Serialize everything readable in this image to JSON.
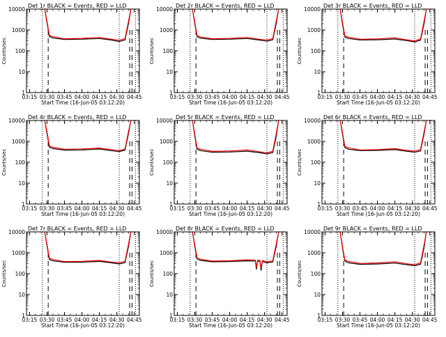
{
  "y_axis_label": "Counts/sec",
  "x_axis_label": "Start Time (16-Jun-05 03:12:20)",
  "x_tick_labels": [
    "03:15",
    "03:30",
    "03:45",
    "04:00",
    "04:15",
    "04:30",
    "04:45"
  ],
  "y_tick_labels": [
    "1",
    "10",
    "100",
    "1000",
    "10000"
  ],
  "colors": {
    "events": "#000000",
    "lld": "#ff0000",
    "background": "#ffffff"
  },
  "chart_data": [
    {
      "type": "line",
      "title": "Det 1r BLACK = Events, RED = LLD",
      "xlabel": "Start Time (16-Jun-05 03:12:20)",
      "ylabel": "Counts/sec",
      "x_unit": "time (HH:MM)",
      "xlim": [
        "03:12:20",
        "04:49:20"
      ],
      "ylim": [
        1,
        10000
      ],
      "yscale": "log",
      "dotted_markers": [
        "03:26",
        "04:32",
        "04:46"
      ],
      "dashed_markers": [
        "03:31",
        "04:41",
        "04:43"
      ],
      "series": [
        {
          "name": "Events",
          "x": [
            "03:28",
            "03:30",
            "03:32",
            "03:35",
            "03:45",
            "04:00",
            "04:15",
            "04:25",
            "04:32",
            "04:37",
            "04:40",
            "04:42"
          ],
          "values": [
            10000,
            2200,
            480,
            410,
            350,
            360,
            390,
            330,
            280,
            330,
            2000,
            10000
          ]
        },
        {
          "name": "LLD",
          "x": [
            "03:28",
            "03:30",
            "03:32",
            "03:35",
            "03:45",
            "04:00",
            "04:15",
            "04:25",
            "04:32",
            "04:37",
            "04:40",
            "04:42"
          ],
          "values": [
            10000,
            2600,
            560,
            470,
            380,
            395,
            440,
            360,
            320,
            380,
            2600,
            10000
          ]
        }
      ]
    },
    {
      "type": "line",
      "title": "Det 2r BLACK = Events, RED = LLD",
      "xlabel": "Start Time (16-Jun-05 03:12:20)",
      "ylabel": "Counts/sec",
      "x_unit": "time (HH:MM)",
      "xlim": [
        "03:12:20",
        "04:49:20"
      ],
      "ylim": [
        1,
        10000
      ],
      "yscale": "log",
      "dotted_markers": [
        "03:26",
        "04:32",
        "04:46"
      ],
      "dashed_markers": [
        "03:31",
        "04:41",
        "04:43"
      ],
      "series": [
        {
          "name": "Events",
          "x": [
            "03:28",
            "03:30",
            "03:32",
            "03:35",
            "03:45",
            "04:00",
            "04:15",
            "04:25",
            "04:32",
            "04:37",
            "04:40",
            "04:42"
          ],
          "values": [
            10000,
            2000,
            470,
            400,
            350,
            360,
            390,
            330,
            290,
            340,
            2000,
            10000
          ]
        },
        {
          "name": "LLD",
          "x": [
            "03:28",
            "03:30",
            "03:32",
            "03:35",
            "03:45",
            "04:00",
            "04:15",
            "04:25",
            "04:32",
            "04:37",
            "04:40",
            "04:42"
          ],
          "values": [
            10000,
            2400,
            540,
            460,
            380,
            395,
            440,
            360,
            330,
            390,
            2600,
            10000
          ]
        }
      ]
    },
    {
      "type": "line",
      "title": "Det 3r BLACK = Events, RED = LLD",
      "xlabel": "Start Time (16-Jun-05 03:12:20)",
      "ylabel": "Counts/sec",
      "x_unit": "time (HH:MM)",
      "xlim": [
        "03:12:20",
        "04:49:20"
      ],
      "ylim": [
        1,
        10000
      ],
      "yscale": "log",
      "dotted_markers": [
        "03:26",
        "04:32",
        "04:46"
      ],
      "dashed_markers": [
        "03:31",
        "04:41",
        "04:43"
      ],
      "series": [
        {
          "name": "Events",
          "x": [
            "03:28",
            "03:30",
            "03:32",
            "03:35",
            "03:45",
            "04:00",
            "04:15",
            "04:25",
            "04:32",
            "04:37",
            "04:40",
            "04:42"
          ],
          "values": [
            10000,
            1900,
            460,
            390,
            330,
            340,
            370,
            310,
            270,
            320,
            1900,
            10000
          ]
        },
        {
          "name": "LLD",
          "x": [
            "03:28",
            "03:30",
            "03:32",
            "03:35",
            "03:45",
            "04:00",
            "04:15",
            "04:25",
            "04:32",
            "04:37",
            "04:40",
            "04:42"
          ],
          "values": [
            10000,
            2300,
            530,
            450,
            360,
            375,
            420,
            340,
            300,
            370,
            2500,
            10000
          ]
        }
      ]
    },
    {
      "type": "line",
      "title": "Det 4r BLACK = Events, RED = LLD",
      "xlabel": "Start Time (16-Jun-05 03:12:20)",
      "ylabel": "Counts/sec",
      "x_unit": "time (HH:MM)",
      "xlim": [
        "03:12:20",
        "04:49:20"
      ],
      "ylim": [
        1,
        10000
      ],
      "yscale": "log",
      "dotted_markers": [
        "03:26",
        "04:32",
        "04:46"
      ],
      "dashed_markers": [
        "03:31",
        "04:41",
        "04:43"
      ],
      "series": [
        {
          "name": "Events",
          "x": [
            "03:28",
            "03:30",
            "03:32",
            "03:35",
            "03:45",
            "04:00",
            "04:15",
            "04:25",
            "04:32",
            "04:37",
            "04:40",
            "04:42"
          ],
          "values": [
            10000,
            2400,
            530,
            450,
            380,
            390,
            430,
            360,
            320,
            380,
            2400,
            10000
          ]
        },
        {
          "name": "LLD",
          "x": [
            "03:28",
            "03:30",
            "03:32",
            "03:35",
            "03:45",
            "04:00",
            "04:15",
            "04:25",
            "04:32",
            "04:37",
            "04:40",
            "04:42"
          ],
          "values": [
            10000,
            2900,
            610,
            520,
            420,
            430,
            480,
            400,
            360,
            430,
            3000,
            10000
          ]
        }
      ]
    },
    {
      "type": "line",
      "title": "Det 5r BLACK = Events, RED = LLD",
      "xlabel": "Start Time (16-Jun-05 03:12:20)",
      "ylabel": "Counts/sec",
      "x_unit": "time (HH:MM)",
      "xlim": [
        "03:12:20",
        "04:49:20"
      ],
      "ylim": [
        1,
        10000
      ],
      "yscale": "log",
      "dotted_markers": [
        "03:26",
        "04:32",
        "04:46"
      ],
      "dashed_markers": [
        "03:31",
        "04:41",
        "04:43"
      ],
      "series": [
        {
          "name": "Events",
          "x": [
            "03:28",
            "03:30",
            "03:32",
            "03:35",
            "03:45",
            "04:00",
            "04:15",
            "04:25",
            "04:32",
            "04:37",
            "04:40",
            "04:42"
          ],
          "values": [
            10000,
            1800,
            420,
            360,
            300,
            310,
            340,
            290,
            250,
            290,
            1700,
            10000
          ]
        },
        {
          "name": "LLD",
          "x": [
            "03:28",
            "03:30",
            "03:32",
            "03:35",
            "03:45",
            "04:00",
            "04:15",
            "04:25",
            "04:32",
            "04:37",
            "04:40",
            "04:42"
          ],
          "values": [
            10000,
            2200,
            490,
            420,
            330,
            345,
            390,
            320,
            280,
            340,
            2300,
            10000
          ]
        }
      ]
    },
    {
      "type": "line",
      "title": "Det 6r BLACK = Events, RED = LLD",
      "xlabel": "Start Time (16-Jun-05 03:12:20)",
      "ylabel": "Counts/sec",
      "x_unit": "time (HH:MM)",
      "xlim": [
        "03:12:20",
        "04:49:20"
      ],
      "ylim": [
        1,
        10000
      ],
      "yscale": "log",
      "dotted_markers": [
        "03:26",
        "04:32",
        "04:46"
      ],
      "dashed_markers": [
        "03:31",
        "04:41",
        "04:43"
      ],
      "series": [
        {
          "name": "Events",
          "x": [
            "03:28",
            "03:30",
            "03:32",
            "03:35",
            "03:45",
            "04:00",
            "04:15",
            "04:25",
            "04:32",
            "04:37",
            "04:40",
            "04:42"
          ],
          "values": [
            10000,
            2200,
            500,
            420,
            360,
            370,
            400,
            340,
            300,
            350,
            2100,
            10000
          ]
        },
        {
          "name": "LLD",
          "x": [
            "03:28",
            "03:30",
            "03:32",
            "03:35",
            "03:45",
            "04:00",
            "04:15",
            "04:25",
            "04:32",
            "04:37",
            "04:40",
            "04:42"
          ],
          "values": [
            10000,
            2700,
            580,
            490,
            390,
            405,
            450,
            370,
            340,
            400,
            2700,
            10000
          ]
        }
      ]
    },
    {
      "type": "line",
      "title": "Det 7r BLACK = Events, RED = LLD",
      "xlabel": "Start Time (16-Jun-05 03:12:20)",
      "ylabel": "Counts/sec",
      "x_unit": "time (HH:MM)",
      "xlim": [
        "03:12:20",
        "04:49:20"
      ],
      "ylim": [
        1,
        10000
      ],
      "yscale": "log",
      "dotted_markers": [
        "03:26",
        "04:32",
        "04:46"
      ],
      "dashed_markers": [
        "03:31",
        "04:41",
        "04:43"
      ],
      "series": [
        {
          "name": "Events",
          "x": [
            "03:28",
            "03:30",
            "03:32",
            "03:35",
            "03:45",
            "04:00",
            "04:15",
            "04:25",
            "04:32",
            "04:37",
            "04:40",
            "04:42"
          ],
          "values": [
            10000,
            2100,
            480,
            410,
            350,
            355,
            385,
            330,
            290,
            340,
            2000,
            10000
          ]
        },
        {
          "name": "LLD",
          "x": [
            "03:28",
            "03:30",
            "03:32",
            "03:35",
            "03:45",
            "04:00",
            "04:15",
            "04:25",
            "04:32",
            "04:37",
            "04:40",
            "04:42"
          ],
          "values": [
            10000,
            2500,
            550,
            470,
            380,
            390,
            430,
            360,
            330,
            390,
            2600,
            10000
          ]
        }
      ]
    },
    {
      "type": "line",
      "title": "Det 8r BLACK = Events, RED = LLD",
      "xlabel": "Start Time (16-Jun-05 03:12:20)",
      "ylabel": "Counts/sec",
      "x_unit": "time (HH:MM)",
      "xlim": [
        "03:12:20",
        "04:49:20"
      ],
      "ylim": [
        1,
        10000
      ],
      "yscale": "log",
      "dotted_markers": [
        "03:26",
        "04:32",
        "04:46"
      ],
      "dashed_markers": [
        "03:31",
        "04:41",
        "04:43"
      ],
      "series": [
        {
          "name": "Events",
          "x": [
            "03:28",
            "03:30",
            "03:32",
            "03:35",
            "03:45",
            "04:00",
            "04:15",
            "04:22",
            "04:23",
            "04:24",
            "04:26",
            "04:27",
            "04:28",
            "04:32",
            "04:37",
            "04:40",
            "04:42"
          ],
          "values": [
            10000,
            2000,
            500,
            430,
            370,
            380,
            410,
            400,
            160,
            400,
            390,
            140,
            380,
            330,
            360,
            2000,
            10000
          ]
        },
        {
          "name": "LLD",
          "x": [
            "03:28",
            "03:30",
            "03:32",
            "03:35",
            "03:45",
            "04:00",
            "04:15",
            "04:22",
            "04:23",
            "04:24",
            "04:26",
            "04:27",
            "04:28",
            "04:32",
            "04:37",
            "04:40",
            "04:42"
          ],
          "values": [
            10000,
            2400,
            570,
            490,
            400,
            415,
            460,
            440,
            200,
            440,
            430,
            180,
            420,
            370,
            410,
            2600,
            10000
          ]
        }
      ]
    },
    {
      "type": "line",
      "title": "Det 9r BLACK = Events, RED = LLD",
      "xlabel": "Start Time (16-Jun-05 03:12:20)",
      "ylabel": "Counts/sec",
      "x_unit": "time (HH:MM)",
      "xlim": [
        "03:12:20",
        "04:49:20"
      ],
      "ylim": [
        1,
        10000
      ],
      "yscale": "log",
      "dotted_markers": [
        "03:26",
        "04:32",
        "04:46"
      ],
      "dashed_markers": [
        "03:31",
        "04:41",
        "04:43"
      ],
      "series": [
        {
          "name": "Events",
          "x": [
            "03:28",
            "03:30",
            "03:32",
            "03:35",
            "03:45",
            "04:00",
            "04:15",
            "04:25",
            "04:32",
            "04:37",
            "04:40",
            "04:42"
          ],
          "values": [
            10000,
            1700,
            400,
            330,
            280,
            290,
            320,
            270,
            240,
            280,
            1700,
            10000
          ]
        },
        {
          "name": "LLD",
          "x": [
            "03:28",
            "03:30",
            "03:32",
            "03:35",
            "03:45",
            "04:00",
            "04:15",
            "04:25",
            "04:32",
            "04:37",
            "04:40",
            "04:42"
          ],
          "values": [
            10000,
            2000,
            460,
            390,
            310,
            325,
            370,
            300,
            270,
            330,
            2200,
            10000
          ]
        }
      ]
    }
  ]
}
